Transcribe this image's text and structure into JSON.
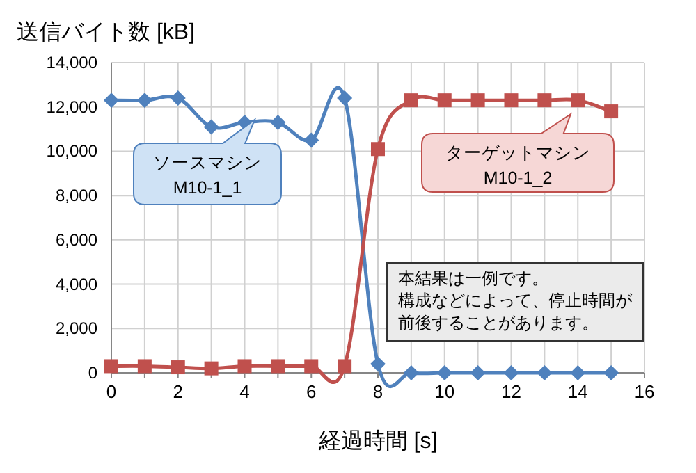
{
  "chart_data": {
    "type": "line",
    "title": "送信バイト数 [kB]",
    "xlabel": "経過時間 [s]",
    "x": [
      0,
      1,
      2,
      3,
      4,
      5,
      6,
      7,
      8,
      9,
      10,
      11,
      12,
      13,
      14,
      15
    ],
    "series": [
      {
        "name": "ソースマシン\nM10-1_1",
        "color": "#4f81bd",
        "marker": "diamond",
        "values": [
          12300,
          12300,
          12400,
          11100,
          11300,
          11300,
          10500,
          12400,
          400,
          0,
          0,
          0,
          0,
          0,
          0,
          0
        ]
      },
      {
        "name": "ターゲットマシン\nM10-1_2",
        "color": "#c0504d",
        "marker": "square",
        "values": [
          300,
          300,
          250,
          200,
          300,
          300,
          300,
          300,
          10100,
          12300,
          12300,
          12300,
          12300,
          12300,
          12300,
          11800
        ]
      }
    ],
    "xlim": [
      0,
      16
    ],
    "ylim": [
      0,
      14000
    ],
    "xticks": [
      0,
      {
        "value": 1,
        "label": null
      },
      2,
      {
        "value": 3,
        "label": null
      },
      4,
      {
        "value": 5,
        "label": null
      },
      6,
      {
        "value": 7,
        "label": null
      },
      8,
      {
        "value": 9,
        "label": null
      },
      10,
      {
        "value": 11,
        "label": null
      },
      12,
      {
        "value": 13,
        "label": null
      },
      14,
      {
        "value": 15,
        "label": null
      },
      16
    ],
    "yticks": [
      0,
      {
        "value": 2000,
        "label": "2,000"
      },
      {
        "value": 4000,
        "label": "4,000"
      },
      {
        "value": 6000,
        "label": "6,000"
      },
      {
        "value": 8000,
        "label": "8,000"
      },
      {
        "value": 10000,
        "label": "10,000"
      },
      {
        "value": 12000,
        "label": "12,000"
      },
      {
        "value": 14000,
        "label": "14,000"
      }
    ],
    "grid": true,
    "annotations": [
      "本結果は一例です。構成などによって、停止時間が前後することがあります。"
    ]
  }
}
